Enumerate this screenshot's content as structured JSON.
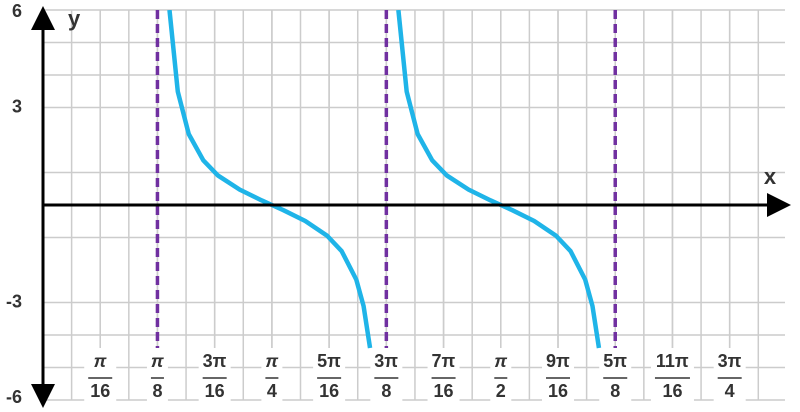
{
  "chart_data": {
    "type": "line",
    "x_label": "x",
    "y_label": "y",
    "xlim": [
      0,
      2.546
    ],
    "ylim": [
      -6,
      6
    ],
    "grid": true,
    "xticks": [
      {
        "value": 0.19635,
        "label": "π/16"
      },
      {
        "value": 0.392699,
        "label": "π/8"
      },
      {
        "value": 0.589049,
        "label": "3π/16"
      },
      {
        "value": 0.785398,
        "label": "π/4"
      },
      {
        "value": 0.981748,
        "label": "5π/16"
      },
      {
        "value": 1.178097,
        "label": "3π/8"
      },
      {
        "value": 1.374447,
        "label": "7π/16"
      },
      {
        "value": 1.570796,
        "label": "π/2"
      },
      {
        "value": 1.767146,
        "label": "9π/16"
      },
      {
        "value": 1.963495,
        "label": "5π/8"
      },
      {
        "value": 2.159845,
        "label": "11π/16"
      },
      {
        "value": 2.356194,
        "label": "3π/4"
      }
    ],
    "yticks": [
      6,
      3,
      -3,
      -6
    ],
    "asymptotes": {
      "color": "#7030a0",
      "x": [
        0.392699,
        1.178097,
        1.963495
      ]
    },
    "series": [
      {
        "color": "#1fb4e8",
        "x": [
          0.434,
          0.4625,
          0.5,
          0.55,
          0.6,
          0.675,
          0.75,
          0.7854,
          0.825,
          0.9,
          0.975,
          1.025,
          1.075,
          1.1,
          1.1222,
          null,
          1.2194,
          1.2479,
          1.2854,
          1.3354,
          1.3854,
          1.4604,
          1.5354,
          1.5708,
          1.6104,
          1.6854,
          1.7604,
          1.8104,
          1.8604,
          1.8854,
          1.9076
        ],
        "values": [
          6,
          3.49,
          2.185,
          1.374,
          0.91,
          0.473,
          0.143,
          0,
          -0.16,
          -0.493,
          -0.946,
          -1.422,
          -2.297,
          -3.11,
          -4.4,
          null,
          6,
          3.49,
          2.185,
          1.374,
          0.91,
          0.473,
          0.143,
          0,
          -0.16,
          -0.493,
          -0.946,
          -1.422,
          -2.297,
          -3.11,
          -4.4
        ]
      }
    ]
  }
}
